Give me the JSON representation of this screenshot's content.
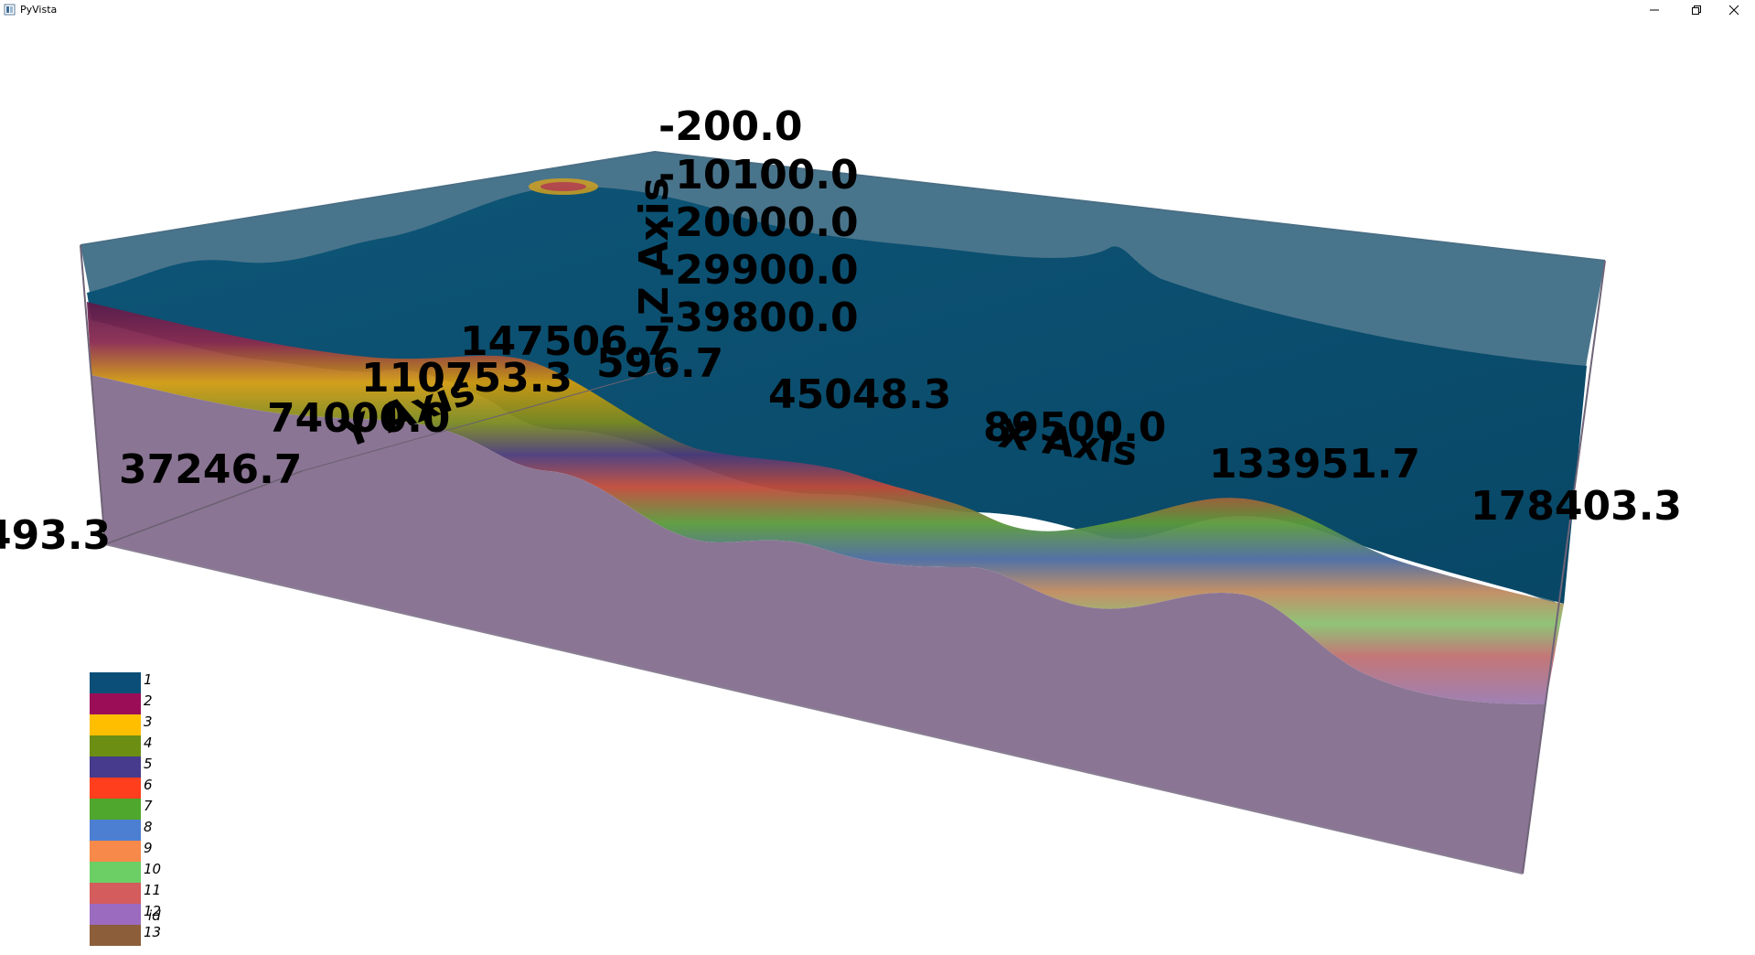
{
  "window": {
    "title": "PyVista",
    "app_icon": "pyvista-window-icon",
    "controls": [
      "minimize-icon",
      "restore-icon",
      "close-icon"
    ]
  },
  "scene": {
    "colors": {
      "top_layer": "#0a4f74",
      "basement": "#8b7594",
      "box_outline": "#4a6f85"
    },
    "axes": {
      "z": {
        "title": "Z Axis",
        "ticks": [
          "-200.0",
          "-10100.0",
          "-20000.0",
          "-29900.0",
          "-39800.0"
        ]
      },
      "y": {
        "title": "Y Axis",
        "ticks": [
          "493.3",
          "37246.7",
          "74000.0",
          "110753.3",
          "147506.7"
        ]
      },
      "x": {
        "title": "X Axis",
        "ticks": [
          "596.7",
          "45048.3",
          "89500.0",
          "133951.7",
          "178403.3"
        ]
      }
    }
  },
  "legend": {
    "title": "id",
    "items": [
      {
        "label": "1",
        "color": "#0b4f78"
      },
      {
        "label": "2",
        "color": "#9b0e57"
      },
      {
        "label": "3",
        "color": "#ffbf00"
      },
      {
        "label": "4",
        "color": "#6c8e13"
      },
      {
        "label": "5",
        "color": "#463b8c"
      },
      {
        "label": "6",
        "color": "#ff3e1e"
      },
      {
        "label": "7",
        "color": "#4fa72d"
      },
      {
        "label": "8",
        "color": "#4c7fd1"
      },
      {
        "label": "9",
        "color": "#f7894a"
      },
      {
        "label": "10",
        "color": "#6ccf65"
      },
      {
        "label": "11",
        "color": "#d45c5c"
      },
      {
        "label": "12",
        "color": "#9b6bc0"
      },
      {
        "label": "13",
        "color": "#8c5e3a"
      }
    ]
  }
}
